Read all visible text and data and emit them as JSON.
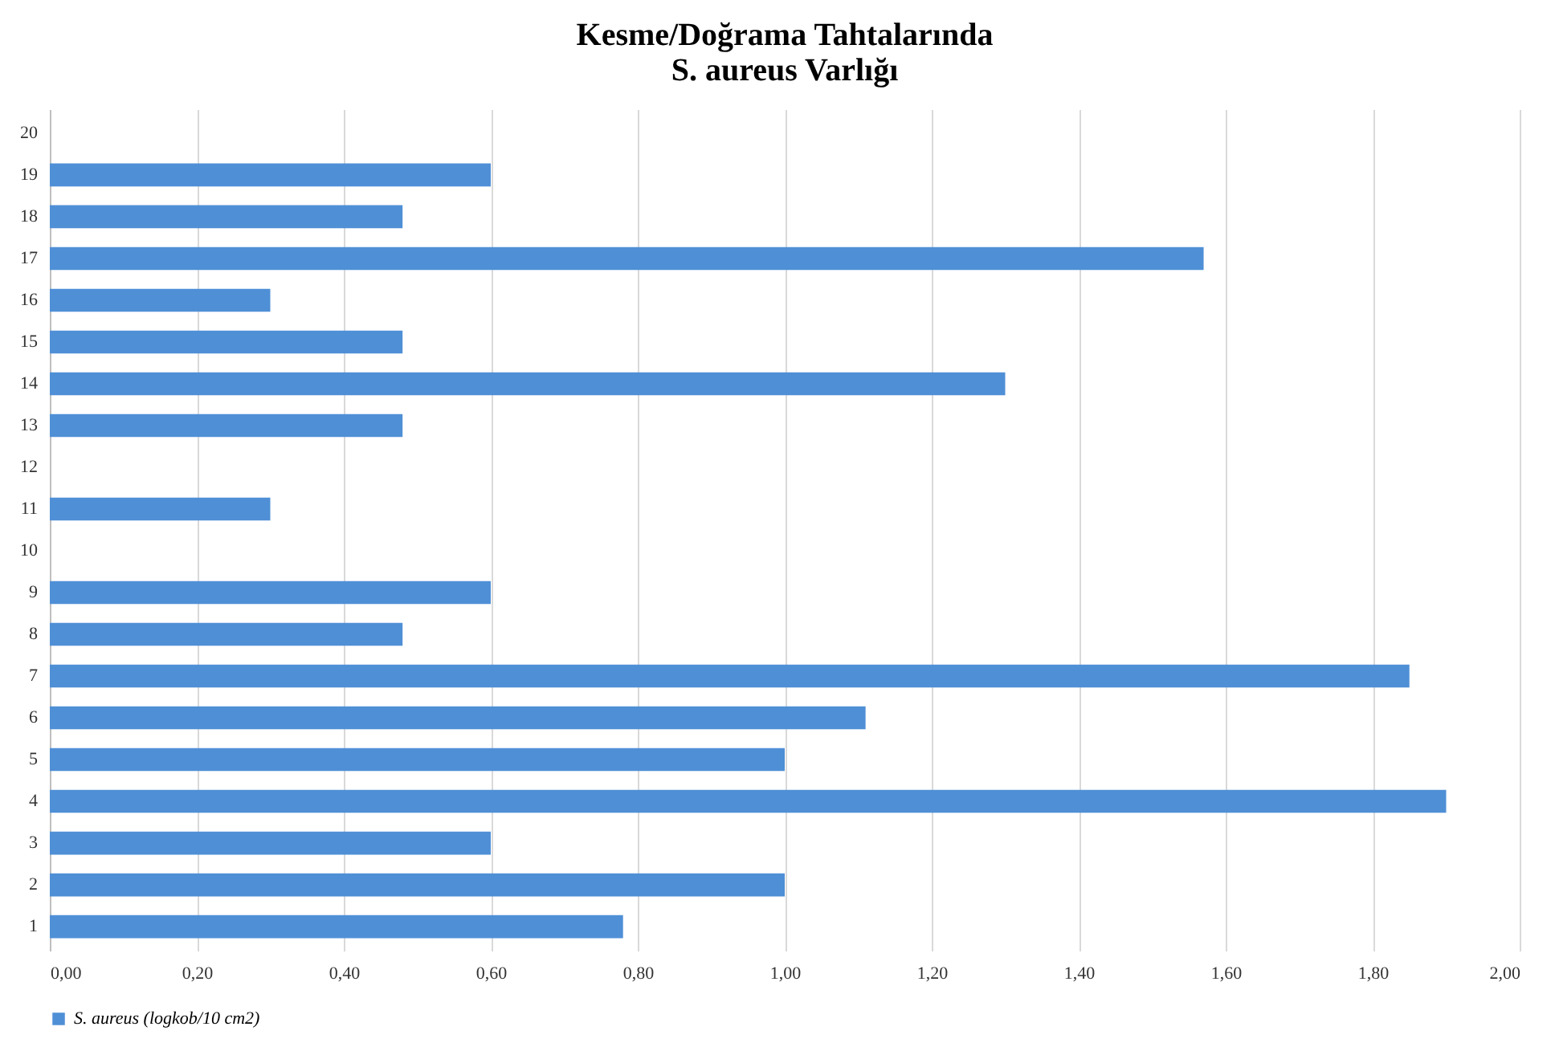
{
  "chart_data": {
    "type": "bar",
    "orientation": "horizontal",
    "title": [
      "Kesme/Doğrama Tahtalarında",
      "S. aureus Varlığı"
    ],
    "categories": [
      "20",
      "19",
      "18",
      "17",
      "16",
      "15",
      "14",
      "13",
      "12",
      "11",
      "10",
      "9",
      "8",
      "7",
      "6",
      "5",
      "4",
      "3",
      "2",
      "1"
    ],
    "series": [
      {
        "name": "S. aureus (logkob/10 cm2)",
        "color": "#4f8fd6",
        "values": [
          null,
          0.6,
          0.48,
          1.57,
          0.3,
          0.48,
          1.3,
          0.48,
          null,
          0.3,
          null,
          0.6,
          0.48,
          1.85,
          1.11,
          1.0,
          1.9,
          0.6,
          1.0,
          0.78
        ]
      }
    ],
    "xlim": [
      0,
      2
    ],
    "xticks": [
      {
        "value": 0,
        "label": "0,00"
      },
      {
        "value": 0.2,
        "label": "0,20"
      },
      {
        "value": 0.4,
        "label": "0,40"
      },
      {
        "value": 0.6,
        "label": "0,60"
      },
      {
        "value": 0.8,
        "label": "0,80"
      },
      {
        "value": 1.0,
        "label": "1,00"
      },
      {
        "value": 1.2,
        "label": "1,20"
      },
      {
        "value": 1.4,
        "label": "1,40"
      },
      {
        "value": 1.6,
        "label": "1,60"
      },
      {
        "value": 1.8,
        "label": "1,80"
      },
      {
        "value": 2.0,
        "label": "2,00"
      }
    ],
    "grid": "x",
    "legend": "bottom"
  }
}
